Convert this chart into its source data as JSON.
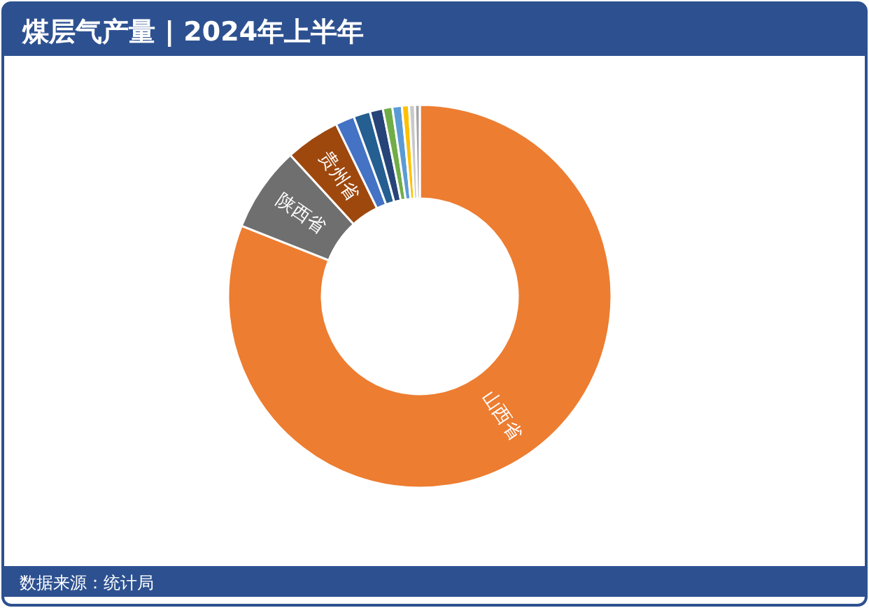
{
  "chart_data": {
    "type": "donut",
    "title": "煤层气产量 | 2024年上半年",
    "annotations": [
      "数据来源：统计局"
    ],
    "categories": [
      "山西省",
      "陕西省",
      "贵州省",
      null,
      null,
      null,
      null,
      null,
      null,
      null,
      null
    ],
    "values": [
      81,
      7.2,
      4.6,
      1.6,
      1.4,
      1.1,
      0.8,
      0.8,
      0.6,
      0.5,
      0.4
    ],
    "colors": [
      "#ed7d31",
      "#6f6f6f",
      "#9e480e",
      "#4472c4",
      "#255e91",
      "#264478",
      "#70ad47",
      "#5b9bd5",
      "#ffc000",
      "#c9c9c9",
      "#a5a5a5"
    ]
  }
}
